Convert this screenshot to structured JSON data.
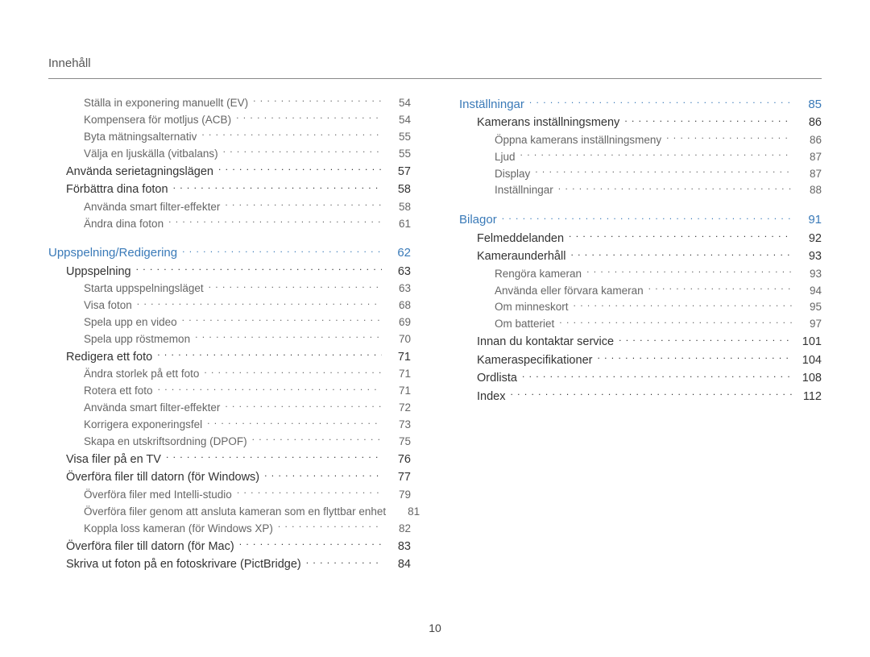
{
  "page_title": "Innehåll",
  "page_number": "10",
  "colors": {
    "section_head": "#3a7ab8",
    "level1": "#333333",
    "level2": "#666666",
    "rule": "#888888",
    "bg": "#ffffff"
  },
  "left_column": [
    {
      "label": "Ställa in exponering manuellt (EV)",
      "page": "54",
      "level": 2,
      "indent": 2
    },
    {
      "label": "Kompensera för motljus (ACB)",
      "page": "54",
      "level": 2,
      "indent": 2
    },
    {
      "label": "Byta mätningsalternativ",
      "page": "55",
      "level": 2,
      "indent": 2
    },
    {
      "label": "Välja en ljuskälla (vitbalans)",
      "page": "55",
      "level": 2,
      "indent": 2
    },
    {
      "label": "Använda serietagningslägen",
      "page": "57",
      "level": 1,
      "indent": 1
    },
    {
      "label": "Förbättra dina foton",
      "page": "58",
      "level": 1,
      "indent": 1
    },
    {
      "label": "Använda smart filter-effekter",
      "page": "58",
      "level": 2,
      "indent": 2
    },
    {
      "label": "Ändra dina foton",
      "page": "61",
      "level": 2,
      "indent": 2
    },
    {
      "label": "Uppspelning/Redigering",
      "page": "62",
      "level": 0,
      "indent": 0
    },
    {
      "label": "Uppspelning",
      "page": "63",
      "level": 1,
      "indent": 1
    },
    {
      "label": "Starta uppspelningsläget",
      "page": "63",
      "level": 2,
      "indent": 2
    },
    {
      "label": "Visa foton",
      "page": "68",
      "level": 2,
      "indent": 2
    },
    {
      "label": "Spela upp en video",
      "page": "69",
      "level": 2,
      "indent": 2
    },
    {
      "label": "Spela upp röstmemon",
      "page": "70",
      "level": 2,
      "indent": 2
    },
    {
      "label": "Redigera ett foto",
      "page": "71",
      "level": 1,
      "indent": 1
    },
    {
      "label": "Ändra storlek på ett foto",
      "page": "71",
      "level": 2,
      "indent": 2
    },
    {
      "label": "Rotera ett foto",
      "page": "71",
      "level": 2,
      "indent": 2
    },
    {
      "label": "Använda smart filter-effekter",
      "page": "72",
      "level": 2,
      "indent": 2
    },
    {
      "label": "Korrigera exponeringsfel",
      "page": "73",
      "level": 2,
      "indent": 2
    },
    {
      "label": "Skapa en utskriftsordning (DPOF)",
      "page": "75",
      "level": 2,
      "indent": 2
    },
    {
      "label": "Visa filer på en TV",
      "page": "76",
      "level": 1,
      "indent": 1
    },
    {
      "label": "Överföra filer till datorn (för Windows)",
      "page": "77",
      "level": 1,
      "indent": 1
    },
    {
      "label": "Överföra filer med Intelli-studio",
      "page": "79",
      "level": 2,
      "indent": 2
    },
    {
      "label": "Överföra filer genom att ansluta kameran som en flyttbar enhet",
      "page": "81",
      "level": 2,
      "indent": 2
    },
    {
      "label": "Koppla loss kameran (för Windows XP)",
      "page": "82",
      "level": 2,
      "indent": 2
    },
    {
      "label": "Överföra filer till datorn (för Mac)",
      "page": "83",
      "level": 1,
      "indent": 1
    },
    {
      "label": "Skriva ut foton på en fotoskrivare (PictBridge)",
      "page": "84",
      "level": 1,
      "indent": 1
    }
  ],
  "right_column": [
    {
      "label": "Inställningar",
      "page": "85",
      "level": 0,
      "indent": 0,
      "no_top_margin": true
    },
    {
      "label": "Kamerans inställningsmeny",
      "page": "86",
      "level": 1,
      "indent": 1
    },
    {
      "label": "Öppna kamerans inställningsmeny",
      "page": "86",
      "level": 2,
      "indent": 2
    },
    {
      "label": "Ljud",
      "page": "87",
      "level": 2,
      "indent": 2
    },
    {
      "label": "Display",
      "page": "87",
      "level": 2,
      "indent": 2
    },
    {
      "label": "Inställningar",
      "page": "88",
      "level": 2,
      "indent": 2
    },
    {
      "label": "Bilagor",
      "page": "91",
      "level": 0,
      "indent": 0
    },
    {
      "label": "Felmeddelanden",
      "page": "92",
      "level": 1,
      "indent": 1
    },
    {
      "label": "Kameraunderhåll",
      "page": "93",
      "level": 1,
      "indent": 1
    },
    {
      "label": "Rengöra kameran",
      "page": "93",
      "level": 2,
      "indent": 2
    },
    {
      "label": "Använda eller förvara kameran",
      "page": "94",
      "level": 2,
      "indent": 2
    },
    {
      "label": "Om minneskort",
      "page": "95",
      "level": 2,
      "indent": 2
    },
    {
      "label": "Om batteriet",
      "page": "97",
      "level": 2,
      "indent": 2
    },
    {
      "label": "Innan du kontaktar service",
      "page": "101",
      "level": 1,
      "indent": 1
    },
    {
      "label": "Kameraspecifikationer",
      "page": "104",
      "level": 1,
      "indent": 1
    },
    {
      "label": "Ordlista",
      "page": "108",
      "level": 1,
      "indent": 1
    },
    {
      "label": "Index",
      "page": "112",
      "level": 1,
      "indent": 1
    }
  ]
}
